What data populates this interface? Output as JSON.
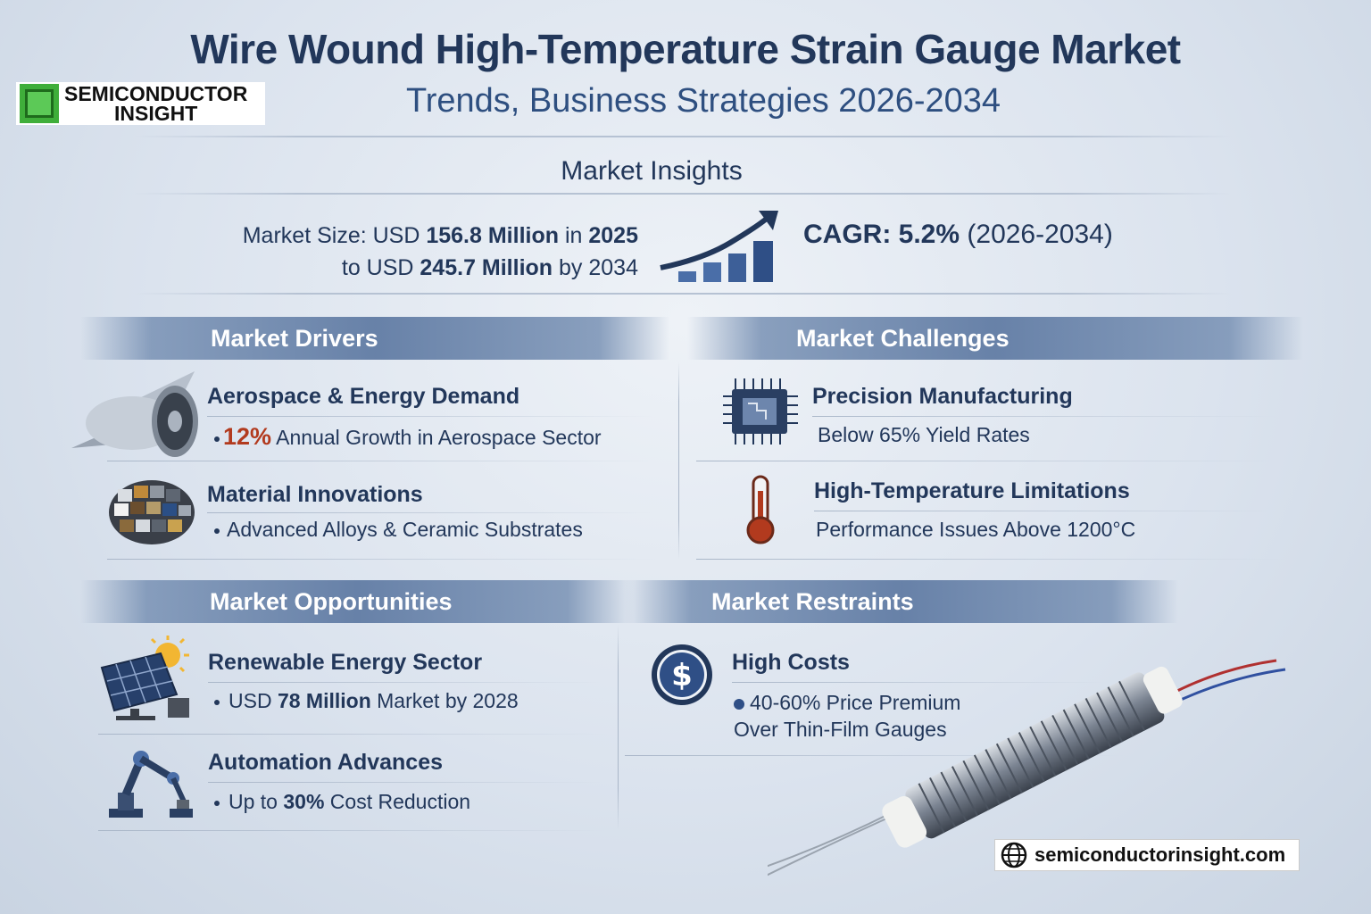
{
  "header": {
    "title": "Wire Wound High-Temperature Strain Gauge Market",
    "subtitle": "Trends, Business Strategies 2026-2034",
    "logo_line1": "SEMICONDUCTOR",
    "logo_line2": "INSIGHT"
  },
  "insights": {
    "heading": "Market Insights",
    "size_prefix": "Market Size: USD ",
    "size_2025": "156.8 Million",
    "size_in": " in ",
    "year_2025": "2025",
    "size_to": "to USD ",
    "size_2034": "245.7 Million",
    "size_by": " by 2034",
    "cagr_label": "CAGR: 5.2%",
    "cagr_period": "(2026-2034)"
  },
  "drivers": {
    "heading": "Market Drivers",
    "items": [
      {
        "title": "Aerospace & Energy Demand",
        "highlight": "12%",
        "detail": " Annual Growth in Aerospace Sector",
        "icon": "jet-engine-icon"
      },
      {
        "title": "Material Innovations",
        "detail": "Advanced Alloys & Ceramic Substrates",
        "icon": "material-sphere-icon"
      }
    ]
  },
  "challenges": {
    "heading": "Market Challenges",
    "items": [
      {
        "title": "Precision Manufacturing",
        "detail": "Below 65% Yield Rates",
        "icon": "chip-icon"
      },
      {
        "title": "High-Temperature Limitations",
        "detail": "Performance Issues Above 1200°C",
        "icon": "thermometer-icon"
      }
    ]
  },
  "opportunities": {
    "heading": "Market Opportunities",
    "items": [
      {
        "title": "Renewable Energy Sector",
        "prefix": "USD ",
        "highlight": "78 Million",
        "detail": " Market by 2028",
        "icon": "solar-panel-icon"
      },
      {
        "title": "Automation Advances",
        "prefix": "Up to ",
        "highlight": "30%",
        "detail": " Cost Reduction",
        "icon": "robot-arm-icon"
      }
    ]
  },
  "restraints": {
    "heading": "Market Restraints",
    "items": [
      {
        "title": "High Costs",
        "detail_line1": "40-60% Price Premium",
        "detail_line2": "Over Thin-Film Gauges",
        "icon": "dollar-icon"
      }
    ]
  },
  "footer": {
    "url": "semiconductorinsight.com"
  },
  "colors": {
    "navy": "#22375a",
    "accent_red": "#b23a1e",
    "band": "#5a76a0"
  }
}
